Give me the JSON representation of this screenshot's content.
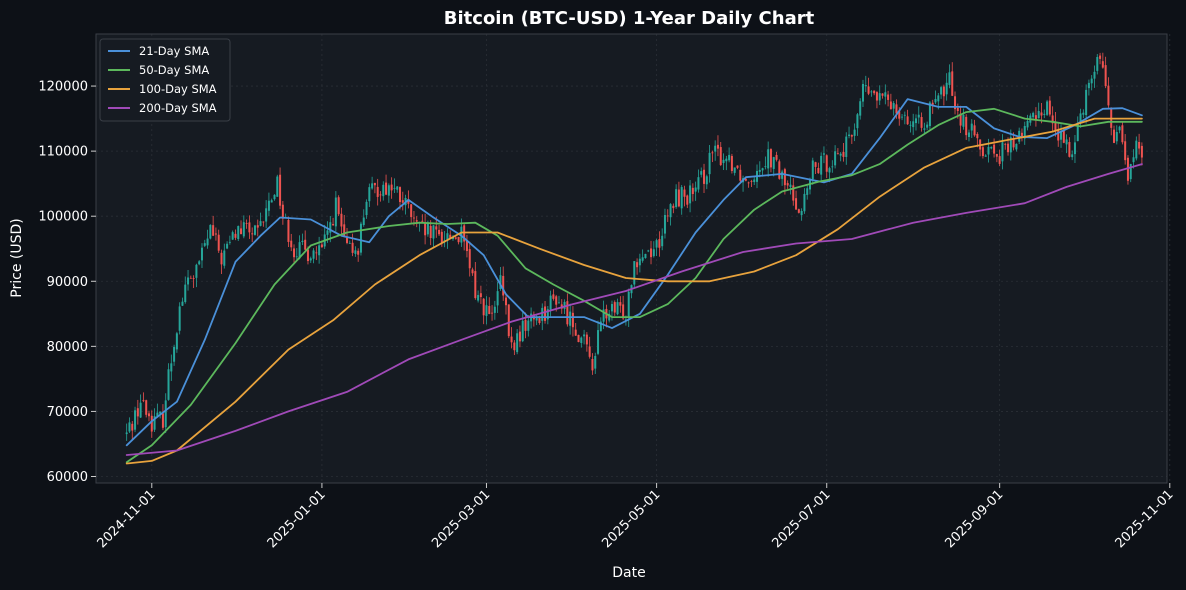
{
  "chart_data": {
    "type": "candlestick",
    "title": "Bitcoin (BTC-USD) 1-Year Daily Chart",
    "xlabel": "Date",
    "ylabel": "Price (USD)",
    "ylim": [
      59000,
      128000
    ],
    "xlim": [
      "2024-10-12",
      "2025-10-31"
    ],
    "grid": true,
    "legend_position": "top-left",
    "y_ticks": [
      60000,
      70000,
      80000,
      90000,
      100000,
      110000,
      120000
    ],
    "x_ticks": [
      "2024-11-01",
      "2025-01-01",
      "2025-03-01",
      "2025-05-01",
      "2025-07-01",
      "2025-09-01",
      "2025-11-01"
    ],
    "colors": {
      "background": "#0d1117",
      "plot_background": "#161b22",
      "up": "#26a69a",
      "down": "#ef5350",
      "text": "#ffffff",
      "grid": "#2a2f36"
    },
    "price_anchors": [
      [
        "2024-10-23",
        66500
      ],
      [
        "2024-10-28",
        71500
      ],
      [
        "2024-11-01",
        68500
      ],
      [
        "2024-11-05",
        69000
      ],
      [
        "2024-11-07",
        75500
      ],
      [
        "2024-11-11",
        86000
      ],
      [
        "2024-11-14",
        90000
      ],
      [
        "2024-11-17",
        91500
      ],
      [
        "2024-11-22",
        98000
      ],
      [
        "2024-11-26",
        93500
      ],
      [
        "2024-12-01",
        97500
      ],
      [
        "2024-12-05",
        98000
      ],
      [
        "2024-12-09",
        97000
      ],
      [
        "2024-12-16",
        105500
      ],
      [
        "2024-12-18",
        100000
      ],
      [
        "2024-12-22",
        95000
      ],
      [
        "2024-12-27",
        94500
      ],
      [
        "2025-01-01",
        94500
      ],
      [
        "2025-01-06",
        101500
      ],
      [
        "2025-01-10",
        94500
      ],
      [
        "2025-01-14",
        95500
      ],
      [
        "2025-01-17",
        103000
      ],
      [
        "2025-01-22",
        104500
      ],
      [
        "2025-01-26",
        104500
      ],
      [
        "2025-02-01",
        101000
      ],
      [
        "2025-02-04",
        98000
      ],
      [
        "2025-02-10",
        97000
      ],
      [
        "2025-02-20",
        97000
      ],
      [
        "2025-02-25",
        88500
      ],
      [
        "2025-03-03",
        84000
      ],
      [
        "2025-03-06",
        90000
      ],
      [
        "2025-03-10",
        79500
      ],
      [
        "2025-03-15",
        83500
      ],
      [
        "2025-03-22",
        85500
      ],
      [
        "2025-03-26",
        87500
      ],
      [
        "2025-04-02",
        83000
      ],
      [
        "2025-04-08",
        77500
      ],
      [
        "2025-04-12",
        85000
      ],
      [
        "2025-04-20",
        85500
      ],
      [
        "2025-04-23",
        93500
      ],
      [
        "2025-05-01",
        95500
      ],
      [
        "2025-05-08",
        103000
      ],
      [
        "2025-05-15",
        103500
      ],
      [
        "2025-05-21",
        109500
      ],
      [
        "2025-05-27",
        109000
      ],
      [
        "2025-06-02",
        105500
      ],
      [
        "2025-06-10",
        109500
      ],
      [
        "2025-06-17",
        104500
      ],
      [
        "2025-06-22",
        101000
      ],
      [
        "2025-06-26",
        107000
      ],
      [
        "2025-07-03",
        109000
      ],
      [
        "2025-07-09",
        111000
      ],
      [
        "2025-07-14",
        119500
      ],
      [
        "2025-07-20",
        118000
      ],
      [
        "2025-07-25",
        117500
      ],
      [
        "2025-08-02",
        113500
      ],
      [
        "2025-08-09",
        117000
      ],
      [
        "2025-08-14",
        121000
      ],
      [
        "2025-08-18",
        115000
      ],
      [
        "2025-08-25",
        111000
      ],
      [
        "2025-09-01",
        109500
      ],
      [
        "2025-09-08",
        112000
      ],
      [
        "2025-09-14",
        116000
      ],
      [
        "2025-09-18",
        117000
      ],
      [
        "2025-09-22",
        112500
      ],
      [
        "2025-09-26",
        109500
      ],
      [
        "2025-10-02",
        119000
      ],
      [
        "2025-10-06",
        124500
      ],
      [
        "2025-10-09",
        121500
      ],
      [
        "2025-10-11",
        112000
      ],
      [
        "2025-10-14",
        112500
      ],
      [
        "2025-10-17",
        106500
      ],
      [
        "2025-10-20",
        110500
      ],
      [
        "2025-10-22",
        108000
      ]
    ],
    "series": [
      {
        "name": "21-Day SMA",
        "color": "#4a90d9",
        "points": [
          [
            "2024-10-23",
            64800
          ],
          [
            "2024-11-01",
            68500
          ],
          [
            "2024-11-10",
            71500
          ],
          [
            "2024-11-20",
            81000
          ],
          [
            "2024-12-01",
            93000
          ],
          [
            "2024-12-10",
            97000
          ],
          [
            "2024-12-17",
            99800
          ],
          [
            "2024-12-28",
            99500
          ],
          [
            "2025-01-08",
            97000
          ],
          [
            "2025-01-18",
            96000
          ],
          [
            "2025-01-25",
            100000
          ],
          [
            "2025-02-01",
            102500
          ],
          [
            "2025-02-10",
            99800
          ],
          [
            "2025-02-20",
            97000
          ],
          [
            "2025-02-28",
            94000
          ],
          [
            "2025-03-08",
            88000
          ],
          [
            "2025-03-16",
            84500
          ],
          [
            "2025-03-25",
            84500
          ],
          [
            "2025-04-05",
            84500
          ],
          [
            "2025-04-15",
            82800
          ],
          [
            "2025-04-25",
            85000
          ],
          [
            "2025-05-05",
            91000
          ],
          [
            "2025-05-15",
            97500
          ],
          [
            "2025-05-25",
            102500
          ],
          [
            "2025-06-02",
            106000
          ],
          [
            "2025-06-15",
            106500
          ],
          [
            "2025-06-30",
            105200
          ],
          [
            "2025-07-10",
            106500
          ],
          [
            "2025-07-20",
            112000
          ],
          [
            "2025-07-30",
            118000
          ],
          [
            "2025-08-10",
            116800
          ],
          [
            "2025-08-20",
            116800
          ],
          [
            "2025-08-30",
            113500
          ],
          [
            "2025-09-08",
            112200
          ],
          [
            "2025-09-18",
            112000
          ],
          [
            "2025-09-28",
            114000
          ],
          [
            "2025-10-08",
            116500
          ],
          [
            "2025-10-15",
            116600
          ],
          [
            "2025-10-22",
            115500
          ]
        ]
      },
      {
        "name": "50-Day SMA",
        "color": "#5cb85c",
        "points": [
          [
            "2024-10-23",
            62200
          ],
          [
            "2024-11-01",
            64800
          ],
          [
            "2024-11-15",
            71000
          ],
          [
            "2024-12-01",
            80500
          ],
          [
            "2024-12-15",
            89500
          ],
          [
            "2024-12-28",
            95500
          ],
          [
            "2025-01-10",
            97500
          ],
          [
            "2025-01-25",
            98500
          ],
          [
            "2025-02-05",
            99000
          ],
          [
            "2025-02-15",
            98800
          ],
          [
            "2025-02-25",
            99000
          ],
          [
            "2025-03-05",
            97000
          ],
          [
            "2025-03-15",
            92000
          ],
          [
            "2025-03-25",
            89500
          ],
          [
            "2025-04-05",
            87000
          ],
          [
            "2025-04-15",
            84500
          ],
          [
            "2025-04-25",
            84500
          ],
          [
            "2025-05-05",
            86500
          ],
          [
            "2025-05-15",
            90500
          ],
          [
            "2025-05-25",
            96500
          ],
          [
            "2025-06-05",
            101000
          ],
          [
            "2025-06-15",
            103800
          ],
          [
            "2025-06-28",
            105300
          ],
          [
            "2025-07-10",
            106300
          ],
          [
            "2025-07-20",
            108000
          ],
          [
            "2025-07-30",
            111000
          ],
          [
            "2025-08-10",
            114000
          ],
          [
            "2025-08-20",
            116000
          ],
          [
            "2025-08-30",
            116500
          ],
          [
            "2025-09-10",
            115000
          ],
          [
            "2025-09-20",
            114500
          ],
          [
            "2025-09-30",
            113800
          ],
          [
            "2025-10-10",
            114500
          ],
          [
            "2025-10-22",
            114500
          ]
        ]
      },
      {
        "name": "100-Day SMA",
        "color": "#e8a33d",
        "points": [
          [
            "2024-10-23",
            62000
          ],
          [
            "2024-11-01",
            62400
          ],
          [
            "2024-11-10",
            64000
          ],
          [
            "2024-12-01",
            71500
          ],
          [
            "2024-12-20",
            79500
          ],
          [
            "2025-01-05",
            84000
          ],
          [
            "2025-01-20",
            89500
          ],
          [
            "2025-02-05",
            94000
          ],
          [
            "2025-02-20",
            97500
          ],
          [
            "2025-03-05",
            97500
          ],
          [
            "2025-03-20",
            95000
          ],
          [
            "2025-04-05",
            92500
          ],
          [
            "2025-04-20",
            90500
          ],
          [
            "2025-05-05",
            90000
          ],
          [
            "2025-05-20",
            90000
          ],
          [
            "2025-06-05",
            91500
          ],
          [
            "2025-06-20",
            94000
          ],
          [
            "2025-07-05",
            98000
          ],
          [
            "2025-07-20",
            103000
          ],
          [
            "2025-08-05",
            107500
          ],
          [
            "2025-08-20",
            110500
          ],
          [
            "2025-09-05",
            111800
          ],
          [
            "2025-09-20",
            113000
          ],
          [
            "2025-10-05",
            115000
          ],
          [
            "2025-10-22",
            115000
          ]
        ]
      },
      {
        "name": "200-Day SMA",
        "color": "#a04ab8",
        "points": [
          [
            "2024-10-23",
            63300
          ],
          [
            "2024-11-10",
            64000
          ],
          [
            "2024-12-01",
            67000
          ],
          [
            "2024-12-20",
            70000
          ],
          [
            "2025-01-10",
            73000
          ],
          [
            "2025-02-01",
            78000
          ],
          [
            "2025-02-20",
            81000
          ],
          [
            "2025-03-10",
            83800
          ],
          [
            "2025-04-01",
            86500
          ],
          [
            "2025-04-20",
            88500
          ],
          [
            "2025-05-10",
            91500
          ],
          [
            "2025-06-01",
            94500
          ],
          [
            "2025-06-20",
            95800
          ],
          [
            "2025-07-10",
            96500
          ],
          [
            "2025-08-01",
            99000
          ],
          [
            "2025-08-20",
            100500
          ],
          [
            "2025-09-10",
            102000
          ],
          [
            "2025-09-25",
            104500
          ],
          [
            "2025-10-10",
            106500
          ],
          [
            "2025-10-22",
            108000
          ]
        ]
      }
    ]
  }
}
